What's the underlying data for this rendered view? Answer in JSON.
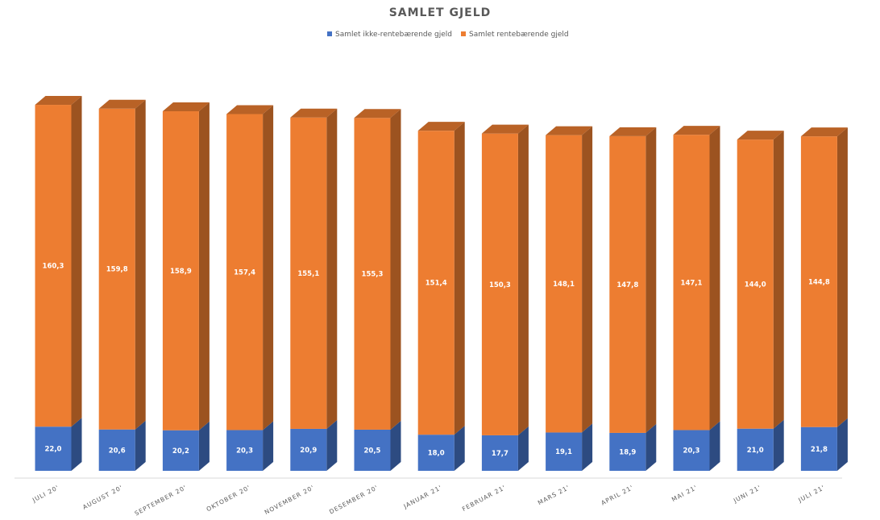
{
  "chart_data": {
    "type": "bar",
    "stacked": true,
    "three_d": true,
    "title": "SAMLET GJELD",
    "legend_position": "top",
    "grid": false,
    "categories": [
      "JULI 20'",
      "AUGUST 20'",
      "SEPTEMBER 20'",
      "OKTOBER 20'",
      "NOVEMBER 20'",
      "DESEMBER 20'",
      "JANUAR 21'",
      "FEBRUAR 21'",
      "MARS 21'",
      "APRIL 21'",
      "MAI 21'",
      "JUNI 21'",
      "JULI 21'"
    ],
    "series": [
      {
        "name": "Samlet ikke-rentebærende gjeld",
        "color": "#4472C4",
        "values": [
          22.0,
          20.6,
          20.2,
          20.3,
          20.9,
          20.5,
          18.0,
          17.7,
          19.1,
          18.9,
          20.3,
          21.0,
          21.8
        ],
        "labels": [
          "22,0",
          "20,6",
          "20,2",
          "20,3",
          "20,9",
          "20,5",
          "18,0",
          "17,7",
          "19,1",
          "18,9",
          "20,3",
          "21,0",
          "21,8"
        ]
      },
      {
        "name": "Samlet rentebærende gjeld",
        "color": "#ED7D31",
        "values": [
          160.3,
          159.8,
          158.9,
          157.4,
          155.1,
          155.3,
          151.4,
          150.3,
          148.1,
          147.8,
          147.1,
          144.0,
          144.8
        ],
        "labels": [
          "160,3",
          "159,8",
          "158,9",
          "157,4",
          "155,1",
          "155,3",
          "151,4",
          "150,3",
          "148,1",
          "147,8",
          "147,1",
          "144,0",
          "144,8"
        ]
      }
    ]
  }
}
